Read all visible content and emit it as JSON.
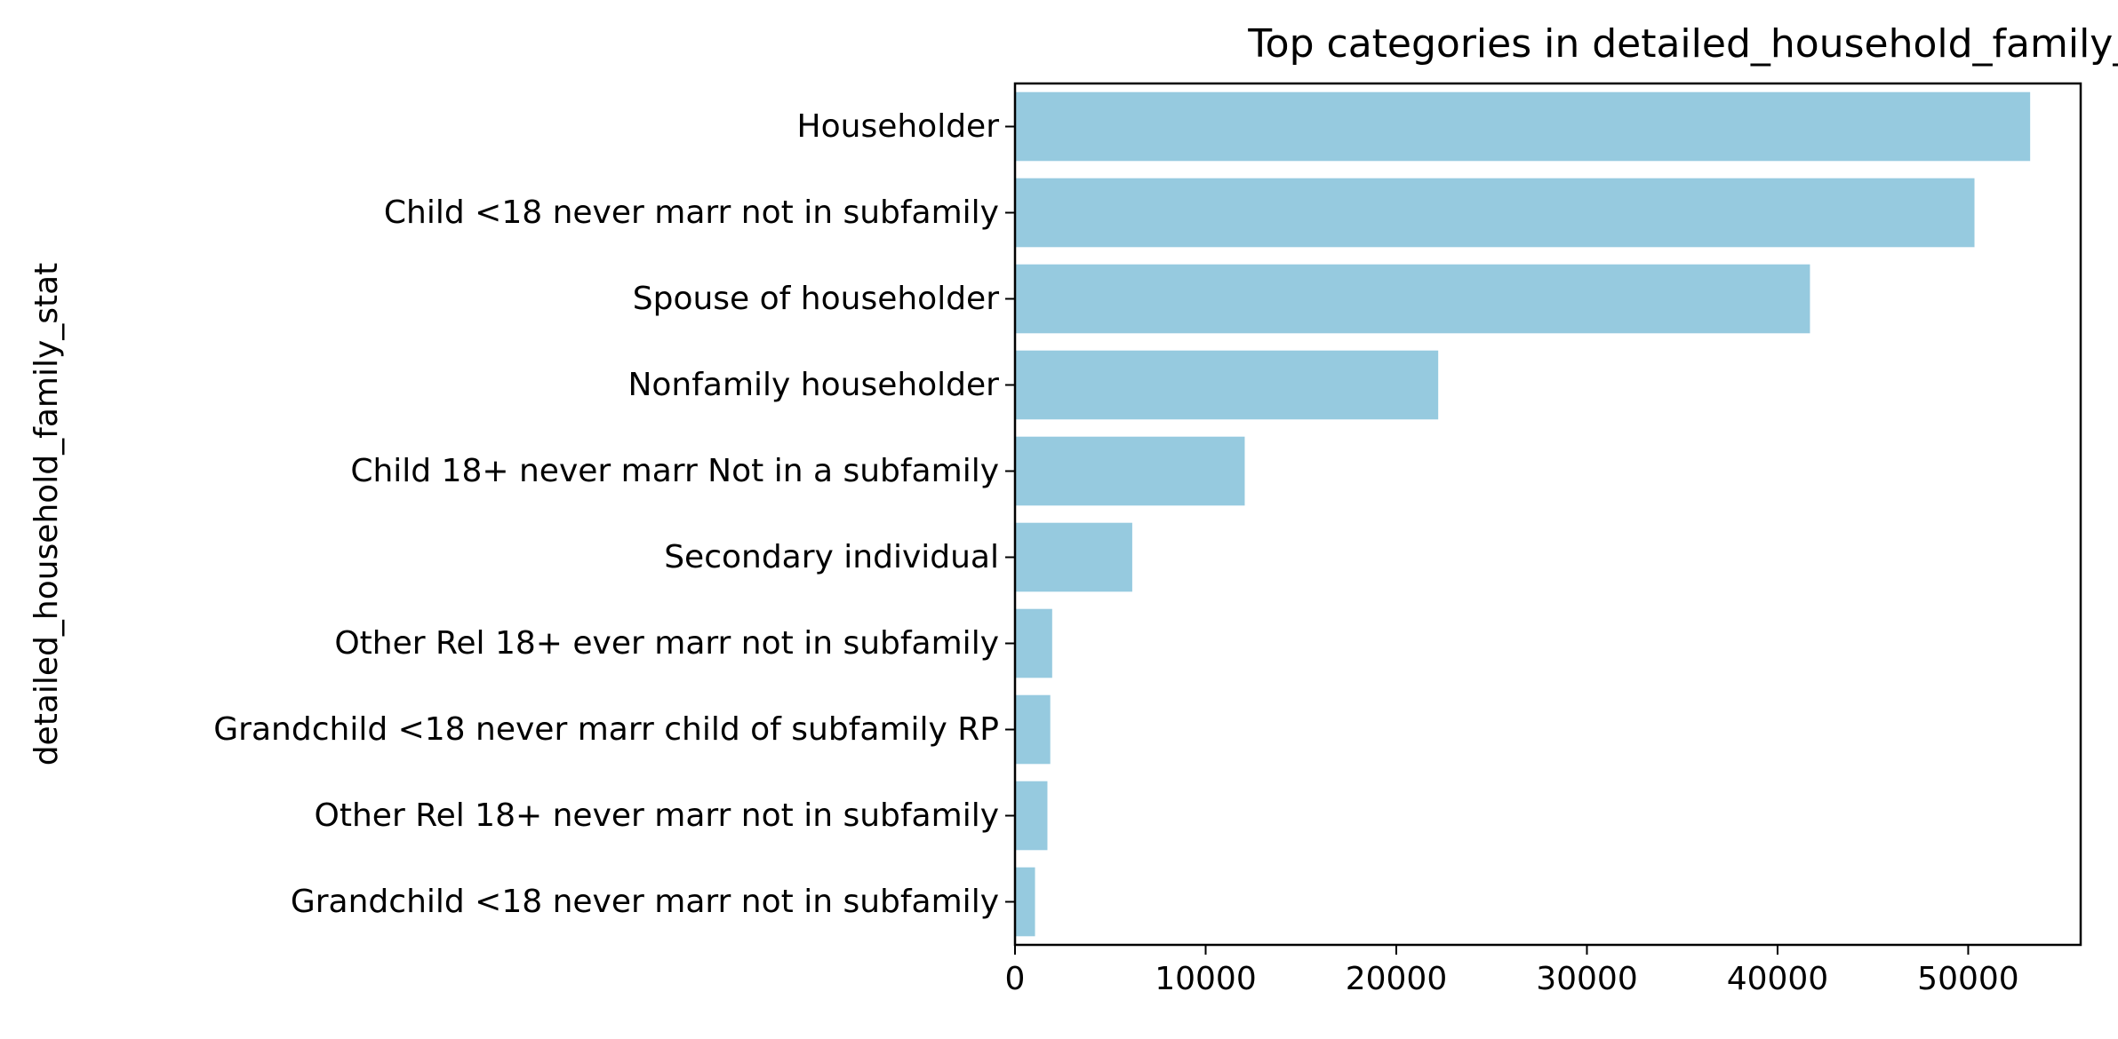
{
  "chart_data": {
    "type": "bar",
    "orientation": "horizontal",
    "title": "Top categories in detailed_household_family_stat",
    "xlabel": "",
    "ylabel": "detailed_household_family_stat",
    "categories": [
      "Householder",
      "Child <18 never marr not in subfamily",
      "Spouse of householder",
      "Nonfamily householder",
      "Child 18+ never marr Not in a subfamily",
      "Secondary individual",
      "Other Rel 18+ ever marr not in subfamily",
      "Grandchild <18 never marr child of subfamily RP",
      "Other Rel 18+ never marr not in subfamily",
      "Grandchild <18 never marr not in subfamily"
    ],
    "values": [
      53250,
      50330,
      41700,
      22200,
      12050,
      6150,
      1950,
      1850,
      1700,
      1050
    ],
    "xlim": [
      0,
      55900
    ],
    "xticks": [
      0,
      10000,
      20000,
      30000,
      40000,
      50000
    ],
    "xtick_labels": [
      "0",
      "10000",
      "20000",
      "30000",
      "40000",
      "50000"
    ],
    "grid": false,
    "bar_color": "#96cadf"
  }
}
